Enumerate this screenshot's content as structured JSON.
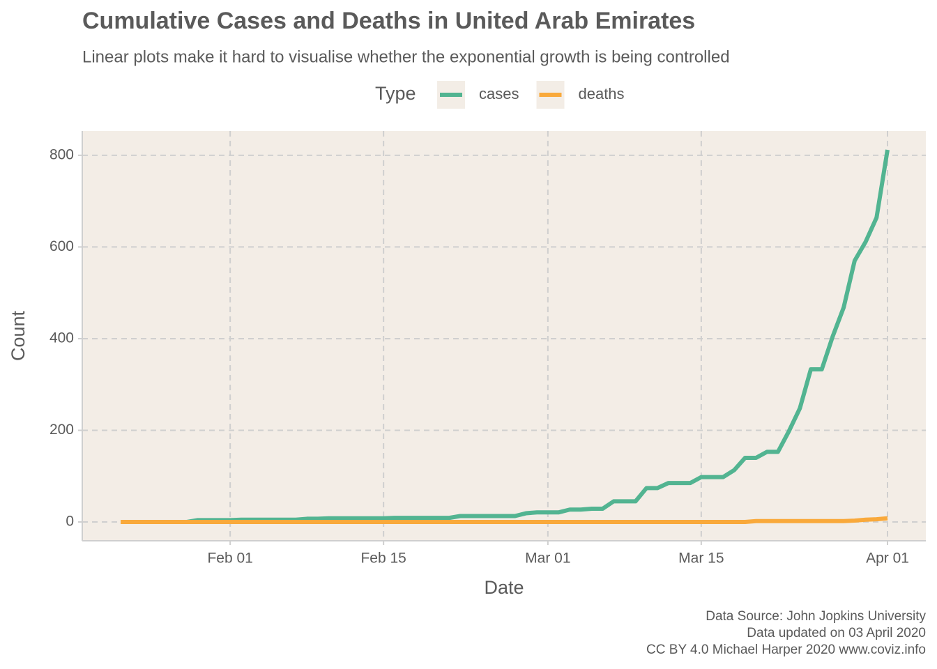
{
  "chart_data": {
    "type": "line",
    "title": "Cumulative Cases and Deaths in United Arab Emirates",
    "subtitle": "Linear plots make it hard to visualise whether the exponential growth is being controlled",
    "legend_title": "Type",
    "x_label": "Date",
    "y_label": "Count",
    "caption": [
      "Data Source: John Jopkins University",
      "Data updated on 03 April 2020",
      "CC BY 4.0 Michael Harper 2020 www.coviz.info"
    ],
    "x": [
      "Jan 22",
      "Jan 23",
      "Jan 24",
      "Jan 25",
      "Jan 26",
      "Jan 27",
      "Jan 28",
      "Jan 29",
      "Jan 30",
      "Jan 31",
      "Feb 01",
      "Feb 02",
      "Feb 03",
      "Feb 04",
      "Feb 05",
      "Feb 06",
      "Feb 07",
      "Feb 08",
      "Feb 09",
      "Feb 10",
      "Feb 11",
      "Feb 12",
      "Feb 13",
      "Feb 14",
      "Feb 15",
      "Feb 16",
      "Feb 17",
      "Feb 18",
      "Feb 19",
      "Feb 20",
      "Feb 21",
      "Feb 22",
      "Feb 23",
      "Feb 24",
      "Feb 25",
      "Feb 26",
      "Feb 27",
      "Feb 28",
      "Feb 29",
      "Mar 01",
      "Mar 02",
      "Mar 03",
      "Mar 04",
      "Mar 05",
      "Mar 06",
      "Mar 07",
      "Mar 08",
      "Mar 09",
      "Mar 10",
      "Mar 11",
      "Mar 12",
      "Mar 13",
      "Mar 14",
      "Mar 15",
      "Mar 16",
      "Mar 17",
      "Mar 18",
      "Mar 19",
      "Mar 20",
      "Mar 21",
      "Mar 22",
      "Mar 23",
      "Mar 24",
      "Mar 25",
      "Mar 26",
      "Mar 27",
      "Mar 28",
      "Mar 29",
      "Mar 30",
      "Mar 31",
      "Apr 01"
    ],
    "series": [
      {
        "name": "cases",
        "color": "#52b491",
        "values": [
          0,
          0,
          0,
          0,
          0,
          0,
          0,
          4,
          4,
          4,
          4,
          5,
          5,
          5,
          5,
          5,
          5,
          7,
          7,
          8,
          8,
          8,
          8,
          8,
          8,
          9,
          9,
          9,
          9,
          9,
          9,
          13,
          13,
          13,
          13,
          13,
          13,
          19,
          21,
          21,
          21,
          27,
          27,
          29,
          29,
          45,
          45,
          45,
          74,
          74,
          85,
          85,
          85,
          98,
          98,
          98,
          113,
          140,
          140,
          153,
          153,
          198,
          248,
          333,
          333,
          405,
          468,
          570,
          611,
          664,
          812
        ]
      },
      {
        "name": "deaths",
        "color": "#f9a93b",
        "values": [
          0,
          0,
          0,
          0,
          0,
          0,
          0,
          0,
          0,
          0,
          0,
          0,
          0,
          0,
          0,
          0,
          0,
          0,
          0,
          0,
          0,
          0,
          0,
          0,
          0,
          0,
          0,
          0,
          0,
          0,
          0,
          0,
          0,
          0,
          0,
          0,
          0,
          0,
          0,
          0,
          0,
          0,
          0,
          0,
          0,
          0,
          0,
          0,
          0,
          0,
          0,
          0,
          0,
          0,
          0,
          0,
          0,
          0,
          2,
          2,
          2,
          2,
          2,
          2,
          2,
          2,
          2,
          3,
          5,
          6,
          8
        ]
      }
    ],
    "xticks": [
      "Feb 01",
      "Feb 15",
      "Mar 01",
      "Mar 15",
      "Apr 01"
    ],
    "ylim": [
      -41,
      853
    ],
    "yticks": [
      0,
      200,
      400,
      600,
      800
    ],
    "grid": true
  }
}
